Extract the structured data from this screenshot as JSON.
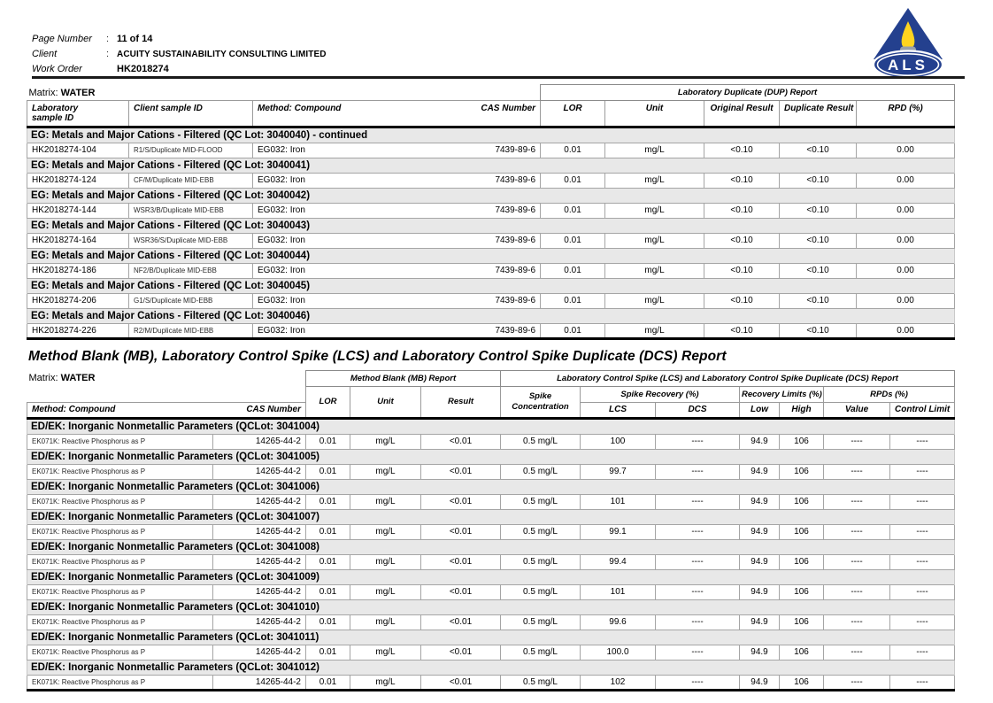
{
  "header": {
    "fields": [
      {
        "label": "Page Number",
        "sep": ":",
        "value": "11 of 14"
      },
      {
        "label": "Client",
        "sep": ":",
        "value": "ACUITY SUSTAINABILITY CONSULTING LIMITED"
      },
      {
        "label": "Work Order",
        "sep": "",
        "value": "HK2018274"
      }
    ],
    "logo_text": "ALS"
  },
  "colors": {
    "brand_navy": "#24408e",
    "flame_yellow": "#ffd41f",
    "candle_gray": "#98a0ab",
    "section_gray": "#e8e8e8"
  },
  "dup_table": {
    "matrix_label": "Matrix:",
    "matrix_value": "WATER",
    "group_header": "Laboratory Duplicate (DUP) Report",
    "headers": {
      "lab_line1": "Laboratory",
      "lab_line2": "sample ID",
      "client_id": "Client sample ID",
      "method": "Method: Compound",
      "cas": "CAS Number",
      "lor": "LOR",
      "unit": "Unit",
      "original": "Original Result",
      "duplicate": "Duplicate Result",
      "rpd": "RPD (%)"
    },
    "sections": [
      {
        "title": "EG: Metals and Major Cations - Filtered  (QC Lot: 3040040)  - continued",
        "rows": [
          {
            "lab_id": "HK2018274-104",
            "client_id": "R1/S/Duplicate MID-FLOOD",
            "compound": "EG032: Iron",
            "cas": "7439-89-6",
            "lor": "0.01",
            "unit": "mg/L",
            "original": "<0.10",
            "duplicate": "<0.10",
            "rpd": "0.00"
          }
        ]
      },
      {
        "title": "EG: Metals and Major Cations - Filtered  (QC Lot: 3040041)",
        "rows": [
          {
            "lab_id": "HK2018274-124",
            "client_id": "CF/M/Duplicate MID-EBB",
            "compound": "EG032: Iron",
            "cas": "7439-89-6",
            "lor": "0.01",
            "unit": "mg/L",
            "original": "<0.10",
            "duplicate": "<0.10",
            "rpd": "0.00"
          }
        ]
      },
      {
        "title": "EG: Metals and Major Cations - Filtered  (QC Lot: 3040042)",
        "rows": [
          {
            "lab_id": "HK2018274-144",
            "client_id": "WSR3/B/Duplicate MID-EBB",
            "compound": "EG032: Iron",
            "cas": "7439-89-6",
            "lor": "0.01",
            "unit": "mg/L",
            "original": "<0.10",
            "duplicate": "<0.10",
            "rpd": "0.00"
          }
        ]
      },
      {
        "title": "EG: Metals and Major Cations - Filtered  (QC Lot: 3040043)",
        "rows": [
          {
            "lab_id": "HK2018274-164",
            "client_id": "WSR36/S/Duplicate MID-EBB",
            "compound": "EG032: Iron",
            "cas": "7439-89-6",
            "lor": "0.01",
            "unit": "mg/L",
            "original": "<0.10",
            "duplicate": "<0.10",
            "rpd": "0.00"
          }
        ]
      },
      {
        "title": "EG: Metals and Major Cations - Filtered  (QC Lot: 3040044)",
        "rows": [
          {
            "lab_id": "HK2018274-186",
            "client_id": "NF2/B/Duplicate MID-EBB",
            "compound": "EG032: Iron",
            "cas": "7439-89-6",
            "lor": "0.01",
            "unit": "mg/L",
            "original": "<0.10",
            "duplicate": "<0.10",
            "rpd": "0.00"
          }
        ]
      },
      {
        "title": "EG: Metals and Major Cations - Filtered  (QC Lot: 3040045)",
        "rows": [
          {
            "lab_id": "HK2018274-206",
            "client_id": "G1/S/Duplicate MID-EBB",
            "compound": "EG032: Iron",
            "cas": "7439-89-6",
            "lor": "0.01",
            "unit": "mg/L",
            "original": "<0.10",
            "duplicate": "<0.10",
            "rpd": "0.00"
          }
        ]
      },
      {
        "title": "EG: Metals and Major Cations - Filtered  (QC Lot: 3040046)",
        "rows": [
          {
            "lab_id": "HK2018274-226",
            "client_id": "R2/M/Duplicate MID-EBB",
            "compound": "EG032: Iron",
            "cas": "7439-89-6",
            "lor": "0.01",
            "unit": "mg/L",
            "original": "<0.10",
            "duplicate": "<0.10",
            "rpd": "0.00"
          }
        ]
      }
    ]
  },
  "mb_title": "Method Blank (MB), Laboratory Control Spike (LCS) and Laboratory Control Spike Duplicate (DCS) Report",
  "mb_table": {
    "matrix_label": "Matrix:",
    "matrix_value": "WATER",
    "group_mb": "Method Blank (MB) Report",
    "group_lcs": "Laboratory Control Spike (LCS) and Laboratory Control Spike Duplicate (DCS) Report",
    "headers": {
      "method": "Method: Compound",
      "cas": "CAS Number",
      "lor": "LOR",
      "unit": "Unit",
      "result": "Result",
      "spike_line1": "Spike",
      "spike_line2": "Concentration",
      "spike_recovery": "Spike Recovery (%)",
      "recovery_limits": "Recovery Limits (%)",
      "rpds": "RPDs (%)",
      "lcs": "LCS",
      "dcs": "DCS",
      "low": "Low",
      "high": "High",
      "value": "Value",
      "control_limit": "Control Limit"
    },
    "sections": [
      {
        "title": "ED/EK: Inorganic Nonmetallic Parameters  (QCLot: 3041004)",
        "rows": [
          {
            "compound": "EK071K: Reactive Phosphorus as P",
            "cas": "14265-44-2",
            "lor": "0.01",
            "unit": "mg/L",
            "result": "<0.01",
            "spike_conc": "0.5 mg/L",
            "lcs": "100",
            "dcs": "----",
            "low": "94.9",
            "high": "106",
            "value": "----",
            "control_limit": "----"
          }
        ]
      },
      {
        "title": "ED/EK: Inorganic Nonmetallic Parameters  (QCLot: 3041005)",
        "rows": [
          {
            "compound": "EK071K: Reactive Phosphorus as P",
            "cas": "14265-44-2",
            "lor": "0.01",
            "unit": "mg/L",
            "result": "<0.01",
            "spike_conc": "0.5 mg/L",
            "lcs": "99.7",
            "dcs": "----",
            "low": "94.9",
            "high": "106",
            "value": "----",
            "control_limit": "----"
          }
        ]
      },
      {
        "title": "ED/EK: Inorganic Nonmetallic Parameters  (QCLot: 3041006)",
        "rows": [
          {
            "compound": "EK071K: Reactive Phosphorus as P",
            "cas": "14265-44-2",
            "lor": "0.01",
            "unit": "mg/L",
            "result": "<0.01",
            "spike_conc": "0.5 mg/L",
            "lcs": "101",
            "dcs": "----",
            "low": "94.9",
            "high": "106",
            "value": "----",
            "control_limit": "----"
          }
        ]
      },
      {
        "title": "ED/EK: Inorganic Nonmetallic Parameters  (QCLot: 3041007)",
        "rows": [
          {
            "compound": "EK071K: Reactive Phosphorus as P",
            "cas": "14265-44-2",
            "lor": "0.01",
            "unit": "mg/L",
            "result": "<0.01",
            "spike_conc": "0.5 mg/L",
            "lcs": "99.1",
            "dcs": "----",
            "low": "94.9",
            "high": "106",
            "value": "----",
            "control_limit": "----"
          }
        ]
      },
      {
        "title": "ED/EK: Inorganic Nonmetallic Parameters  (QCLot: 3041008)",
        "rows": [
          {
            "compound": "EK071K: Reactive Phosphorus as P",
            "cas": "14265-44-2",
            "lor": "0.01",
            "unit": "mg/L",
            "result": "<0.01",
            "spike_conc": "0.5 mg/L",
            "lcs": "99.4",
            "dcs": "----",
            "low": "94.9",
            "high": "106",
            "value": "----",
            "control_limit": "----"
          }
        ]
      },
      {
        "title": "ED/EK: Inorganic Nonmetallic Parameters  (QCLot: 3041009)",
        "rows": [
          {
            "compound": "EK071K: Reactive Phosphorus as P",
            "cas": "14265-44-2",
            "lor": "0.01",
            "unit": "mg/L",
            "result": "<0.01",
            "spike_conc": "0.5 mg/L",
            "lcs": "101",
            "dcs": "----",
            "low": "94.9",
            "high": "106",
            "value": "----",
            "control_limit": "----"
          }
        ]
      },
      {
        "title": "ED/EK: Inorganic Nonmetallic Parameters  (QCLot: 3041010)",
        "rows": [
          {
            "compound": "EK071K: Reactive Phosphorus as P",
            "cas": "14265-44-2",
            "lor": "0.01",
            "unit": "mg/L",
            "result": "<0.01",
            "spike_conc": "0.5 mg/L",
            "lcs": "99.6",
            "dcs": "----",
            "low": "94.9",
            "high": "106",
            "value": "----",
            "control_limit": "----"
          }
        ]
      },
      {
        "title": "ED/EK: Inorganic Nonmetallic Parameters  (QCLot: 3041011)",
        "rows": [
          {
            "compound": "EK071K: Reactive Phosphorus as P",
            "cas": "14265-44-2",
            "lor": "0.01",
            "unit": "mg/L",
            "result": "<0.01",
            "spike_conc": "0.5 mg/L",
            "lcs": "100.0",
            "dcs": "----",
            "low": "94.9",
            "high": "106",
            "value": "----",
            "control_limit": "----"
          }
        ]
      },
      {
        "title": "ED/EK: Inorganic Nonmetallic Parameters  (QCLot: 3041012)",
        "rows": [
          {
            "compound": "EK071K: Reactive Phosphorus as P",
            "cas": "14265-44-2",
            "lor": "0.01",
            "unit": "mg/L",
            "result": "<0.01",
            "spike_conc": "0.5 mg/L",
            "lcs": "102",
            "dcs": "----",
            "low": "94.9",
            "high": "106",
            "value": "----",
            "control_limit": "----"
          }
        ]
      }
    ]
  }
}
